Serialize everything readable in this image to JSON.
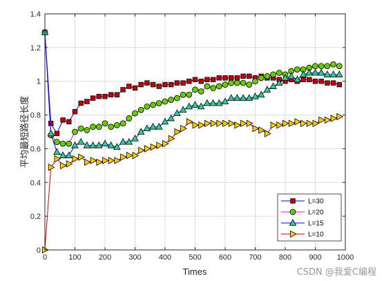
{
  "chart_data": {
    "type": "line",
    "xlabel": "Times",
    "ylabel": "平均最短路径长度",
    "xlim": [
      0,
      1000
    ],
    "ylim": [
      0,
      1.4
    ],
    "xticks": [
      0,
      100,
      200,
      300,
      400,
      500,
      600,
      700,
      800,
      900,
      1000
    ],
    "yticks": [
      0,
      0.2,
      0.4,
      0.6,
      0.8,
      1,
      1.2,
      1.4
    ],
    "grid": true,
    "legend_position": "bottom-right",
    "series": [
      {
        "name": "L=30",
        "line_color": "#0000ff",
        "marker": "square",
        "marker_fill": "#c00000",
        "x": [
          0,
          20,
          40,
          60,
          80,
          100,
          120,
          140,
          160,
          180,
          200,
          220,
          240,
          260,
          280,
          300,
          320,
          340,
          360,
          380,
          400,
          420,
          440,
          460,
          480,
          500,
          520,
          540,
          560,
          580,
          600,
          620,
          640,
          660,
          680,
          700,
          720,
          740,
          760,
          780,
          800,
          820,
          840,
          860,
          880,
          900,
          920,
          940,
          960,
          980
        ],
        "y": [
          1.29,
          0.75,
          0.69,
          0.77,
          0.76,
          0.82,
          0.87,
          0.88,
          0.9,
          0.91,
          0.91,
          0.92,
          0.92,
          0.95,
          0.97,
          0.96,
          0.98,
          0.99,
          0.98,
          0.97,
          0.98,
          0.98,
          0.99,
          0.99,
          1.0,
          1.01,
          1.0,
          1.01,
          1.01,
          1.02,
          1.02,
          1.02,
          1.02,
          1.03,
          1.03,
          1.02,
          1.03,
          1.02,
          1.02,
          1.01,
          1.0,
          1.01,
          1.0,
          1.01,
          1.01,
          1.0,
          1.0,
          0.99,
          0.99,
          0.98
        ]
      },
      {
        "name": "L=20",
        "line_color": "#ff00ff",
        "marker": "circle",
        "marker_fill": "#66cc00",
        "x": [
          0,
          20,
          40,
          60,
          80,
          100,
          120,
          140,
          160,
          180,
          200,
          220,
          240,
          260,
          280,
          300,
          320,
          340,
          360,
          380,
          400,
          420,
          440,
          460,
          480,
          500,
          520,
          540,
          560,
          580,
          600,
          620,
          640,
          660,
          680,
          700,
          720,
          740,
          760,
          780,
          800,
          820,
          840,
          860,
          880,
          900,
          920,
          940,
          960,
          980
        ],
        "y": [
          1.29,
          0.68,
          0.64,
          0.63,
          0.63,
          0.7,
          0.72,
          0.71,
          0.73,
          0.73,
          0.75,
          0.73,
          0.74,
          0.75,
          0.78,
          0.81,
          0.83,
          0.85,
          0.86,
          0.87,
          0.88,
          0.89,
          0.9,
          0.92,
          0.92,
          0.95,
          0.94,
          0.97,
          0.96,
          0.97,
          0.98,
          0.99,
          0.99,
          0.99,
          0.98,
          1.0,
          1.02,
          1.03,
          1.04,
          1.05,
          1.04,
          1.06,
          1.07,
          1.07,
          1.08,
          1.09,
          1.09,
          1.09,
          1.1,
          1.09
        ]
      },
      {
        "name": "L=15",
        "line_color": "#0000ff",
        "marker": "triangle-up",
        "marker_fill": "#33cc99",
        "x": [
          0,
          20,
          40,
          60,
          80,
          100,
          120,
          140,
          160,
          180,
          200,
          220,
          240,
          260,
          280,
          300,
          320,
          340,
          360,
          380,
          400,
          420,
          440,
          460,
          480,
          500,
          520,
          540,
          560,
          580,
          600,
          620,
          640,
          660,
          680,
          700,
          720,
          740,
          760,
          780,
          800,
          820,
          840,
          860,
          880,
          900,
          920,
          940,
          960,
          980
        ],
        "y": [
          1.29,
          0.69,
          0.58,
          0.56,
          0.56,
          0.62,
          0.64,
          0.62,
          0.62,
          0.62,
          0.63,
          0.62,
          0.61,
          0.64,
          0.64,
          0.66,
          0.7,
          0.72,
          0.73,
          0.73,
          0.76,
          0.78,
          0.81,
          0.83,
          0.85,
          0.86,
          0.85,
          0.87,
          0.87,
          0.87,
          0.88,
          0.9,
          0.9,
          0.9,
          0.9,
          0.91,
          0.92,
          0.95,
          0.97,
          0.99,
          1.02,
          1.03,
          1.01,
          1.04,
          1.05,
          1.05,
          1.05,
          1.04,
          1.04,
          1.04
        ]
      },
      {
        "name": "L=10",
        "line_color": "#cc0000",
        "marker": "triangle-right",
        "marker_fill": "#ffcc00",
        "x": [
          0,
          20,
          40,
          60,
          80,
          100,
          120,
          140,
          160,
          180,
          200,
          220,
          240,
          260,
          280,
          300,
          320,
          340,
          360,
          380,
          400,
          420,
          440,
          460,
          480,
          500,
          520,
          540,
          560,
          580,
          600,
          620,
          640,
          660,
          680,
          700,
          720,
          740,
          760,
          780,
          800,
          820,
          840,
          860,
          880,
          900,
          920,
          940,
          960,
          980
        ],
        "y": [
          0.0,
          0.49,
          0.54,
          0.5,
          0.51,
          0.54,
          0.55,
          0.52,
          0.53,
          0.52,
          0.53,
          0.53,
          0.53,
          0.55,
          0.56,
          0.56,
          0.59,
          0.6,
          0.61,
          0.62,
          0.63,
          0.66,
          0.7,
          0.72,
          0.76,
          0.74,
          0.74,
          0.75,
          0.75,
          0.75,
          0.75,
          0.75,
          0.74,
          0.75,
          0.75,
          0.72,
          0.71,
          0.69,
          0.74,
          0.74,
          0.75,
          0.75,
          0.76,
          0.75,
          0.75,
          0.75,
          0.77,
          0.77,
          0.78,
          0.79
        ]
      }
    ]
  },
  "watermark": "CSDN @我爱C编程"
}
